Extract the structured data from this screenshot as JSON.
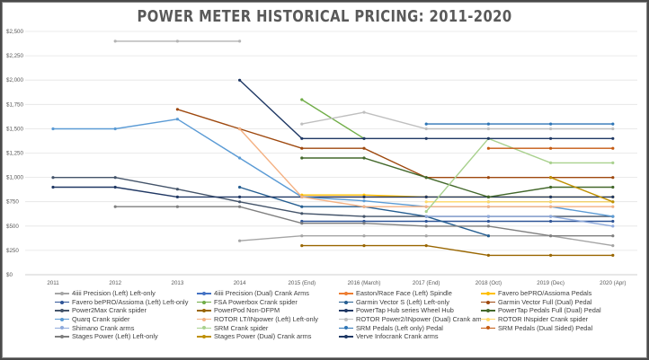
{
  "chart_data": {
    "type": "line",
    "title": "POWER METER HISTORICAL PRICING: 2011-2020",
    "xlabel": "",
    "ylabel": "",
    "categories": [
      "2011",
      "2012",
      "2013",
      "2014",
      "2015 (End)",
      "2016 (March)",
      "2017 (End)",
      "2018 (Oct)",
      "2019 (Dec)",
      "2020 (Apr)"
    ],
    "y_ticks": [
      "$0",
      "$250",
      "$500",
      "$750",
      "$1,000",
      "$1,250",
      "$1,500",
      "$1,750",
      "$2,000",
      "$2,250",
      "$2,500"
    ],
    "ylim": [
      0,
      2500
    ],
    "grid": true,
    "legend_position": "bottom",
    "series": [
      {
        "name": "4iiii Precision (Left) Left-only",
        "color": "#a5a5a5",
        "values": [
          null,
          null,
          null,
          349,
          399,
          399,
          399,
          399,
          399,
          299
        ]
      },
      {
        "name": "4iiii Precision (Dual) Crank Arms",
        "color": "#4472c4",
        "values": [
          null,
          null,
          null,
          null,
          null,
          null,
          null,
          749,
          749,
          749
        ]
      },
      {
        "name": "Easton/Race Face (Left) Spindle",
        "color": "#ed7d31",
        "values": [
          null,
          null,
          null,
          null,
          799,
          799,
          799,
          null,
          null,
          null
        ]
      },
      {
        "name": "Favero bePRO/Assioma Pedals",
        "color": "#ffc000",
        "values": [
          null,
          null,
          null,
          null,
          819,
          819,
          799,
          799,
          799,
          799
        ]
      },
      {
        "name": "Favero bePRO/Assioma (Left) Left-only",
        "color": "#2f5597",
        "values": [
          null,
          null,
          null,
          null,
          549,
          549,
          549,
          549,
          549,
          549
        ]
      },
      {
        "name": "FSA Powerbox Crank spider",
        "color": "#70ad47",
        "values": [
          null,
          null,
          null,
          null,
          1799,
          1399,
          null,
          null,
          null,
          null
        ]
      },
      {
        "name": "Garmin Vector S (Left) Left-only",
        "color": "#255e91",
        "values": [
          null,
          null,
          null,
          899,
          699,
          699,
          599,
          399,
          null,
          null
        ]
      },
      {
        "name": "Garmin Vector Full (Dual) Pedal",
        "color": "#9e480e",
        "values": [
          null,
          null,
          1699,
          1499,
          1299,
          1299,
          999,
          999,
          999,
          999
        ]
      },
      {
        "name": "Power2Max Crank spider",
        "color": "#44546a",
        "values": [
          999,
          999,
          879,
          749,
          629,
          599,
          599,
          599,
          599,
          599
        ]
      },
      {
        "name": "PowerPod Non-DFPM",
        "color": "#996600",
        "values": [
          null,
          null,
          null,
          null,
          299,
          299,
          299,
          199,
          199,
          199
        ]
      },
      {
        "name": "PowerTap Hub series Wheel Hub",
        "color": "#203864",
        "values": [
          899,
          899,
          799,
          799,
          799,
          799,
          799,
          799,
          799,
          799
        ]
      },
      {
        "name": "PowerTap Pedals Full (Dual) Pedal",
        "color": "#43682b",
        "values": [
          null,
          null,
          null,
          null,
          1199,
          1199,
          999,
          799,
          899,
          899
        ]
      },
      {
        "name": "Quarq Crank spider",
        "color": "#5b9bd5",
        "values": [
          1499,
          1499,
          1599,
          1199,
          799,
          759,
          699,
          699,
          699,
          599
        ]
      },
      {
        "name": "ROTOR LT/INpower (Left) Left-only",
        "color": "#f4b183",
        "values": [
          null,
          null,
          null,
          1499,
          799,
          699,
          699,
          699,
          699,
          699
        ]
      },
      {
        "name": "ROTOR Power2/INpower (Dual) Crank arms",
        "color": "#bfbfbf",
        "values": [
          null,
          null,
          null,
          null,
          1549,
          1669,
          1499,
          1499,
          1499,
          1499
        ]
      },
      {
        "name": "ROTOR INspider Crank spider",
        "color": "#ffd966",
        "values": [
          null,
          null,
          null,
          null,
          null,
          null,
          749,
          749,
          749,
          749
        ]
      },
      {
        "name": "Shimano Crank arms",
        "color": "#8faadc",
        "values": [
          null,
          null,
          null,
          null,
          null,
          null,
          599,
          599,
          599,
          499
        ]
      },
      {
        "name": "SRM Crank spider",
        "color": "#a9d18e",
        "values": [
          null,
          null,
          null,
          null,
          null,
          null,
          649,
          1399,
          1149,
          1149
        ]
      },
      {
        "name": "SRM Pedals (Left only) Pedal",
        "color": "#2e75b6",
        "values": [
          null,
          null,
          null,
          null,
          null,
          null,
          1549,
          1549,
          1549,
          1549
        ]
      },
      {
        "name": "SRM Pedals (Dual Sided) Pedal",
        "color": "#c55a11",
        "values": [
          null,
          null,
          null,
          null,
          null,
          null,
          null,
          1299,
          1299,
          1299
        ]
      },
      {
        "name": "Stages Power (Left) Left-only",
        "color": "#7f7f7f",
        "values": [
          null,
          699,
          699,
          699,
          529,
          529,
          499,
          499,
          399,
          399
        ]
      },
      {
        "name": "Stages Power (Dual) Crank arms",
        "color": "#bf9000",
        "values": [
          null,
          null,
          null,
          null,
          null,
          null,
          null,
          null,
          999,
          749
        ]
      },
      {
        "name": "Verve Infocrank Crank arms",
        "color": "#1f3864",
        "values": [
          null,
          null,
          null,
          1999,
          1399,
          1399,
          1399,
          1399,
          1399,
          1399
        ]
      },
      {
        "name": "",
        "color": "#b4b4b4",
        "values": [
          null,
          2399,
          2399,
          2399,
          null,
          null,
          null,
          null,
          null,
          null
        ]
      }
    ]
  }
}
